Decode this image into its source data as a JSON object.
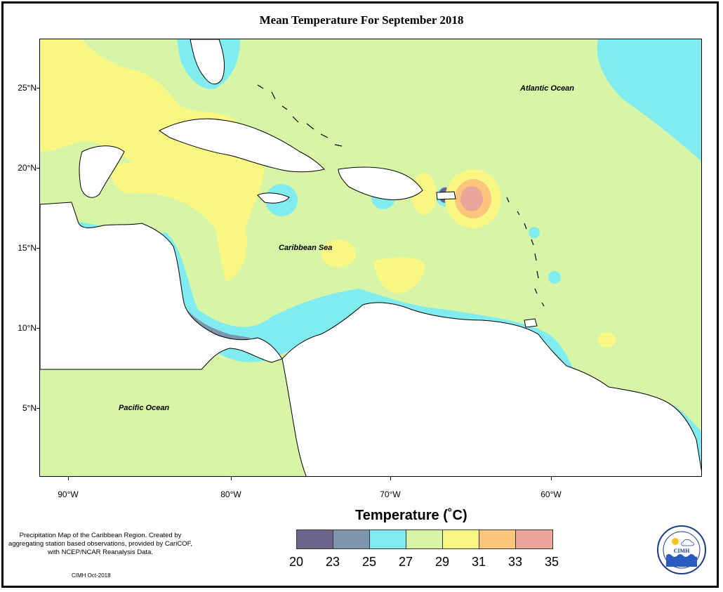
{
  "title": "Mean Temperature For September 2018",
  "map_labels": {
    "atlantic": "Atlantic Ocean",
    "caribbean": "Caribbean Sea",
    "pacific": "Pacific Ocean"
  },
  "y_axis": [
    "25°N",
    "20°N",
    "15°N",
    "10°N",
    "5°N"
  ],
  "x_axis": [
    "90°W",
    "80°W",
    "70°W",
    "60°W"
  ],
  "legend": {
    "title": "Temperature (˚C)",
    "values": [
      "20",
      "23",
      "25",
      "27",
      "29",
      "31",
      "33",
      "35"
    ],
    "colors": [
      "#6b6389",
      "#7d95ad",
      "#80ecf0",
      "#d6f5a6",
      "#f9f783",
      "#fbc67c",
      "#eba59b"
    ]
  },
  "credit": "Precipitation Map of the Caribbean Region. Created by aggregating station based observations, provided by CariCOF, with NCEP/NCAR Reanalysis Data.",
  "credit_date": "CIMH Oct-2018",
  "logo": {
    "text": "CIMH",
    "ring_text": "Caribbean Institute for Meteorology and Hydrology"
  },
  "colors": {
    "land": "#ffffff",
    "cold": "#6b6389",
    "cool": "#7d95ad",
    "mild": "#80ecf0",
    "normal": "#d6f5a6",
    "warm": "#f9f783",
    "hot": "#fbc67c",
    "hottest": "#eba59b"
  }
}
